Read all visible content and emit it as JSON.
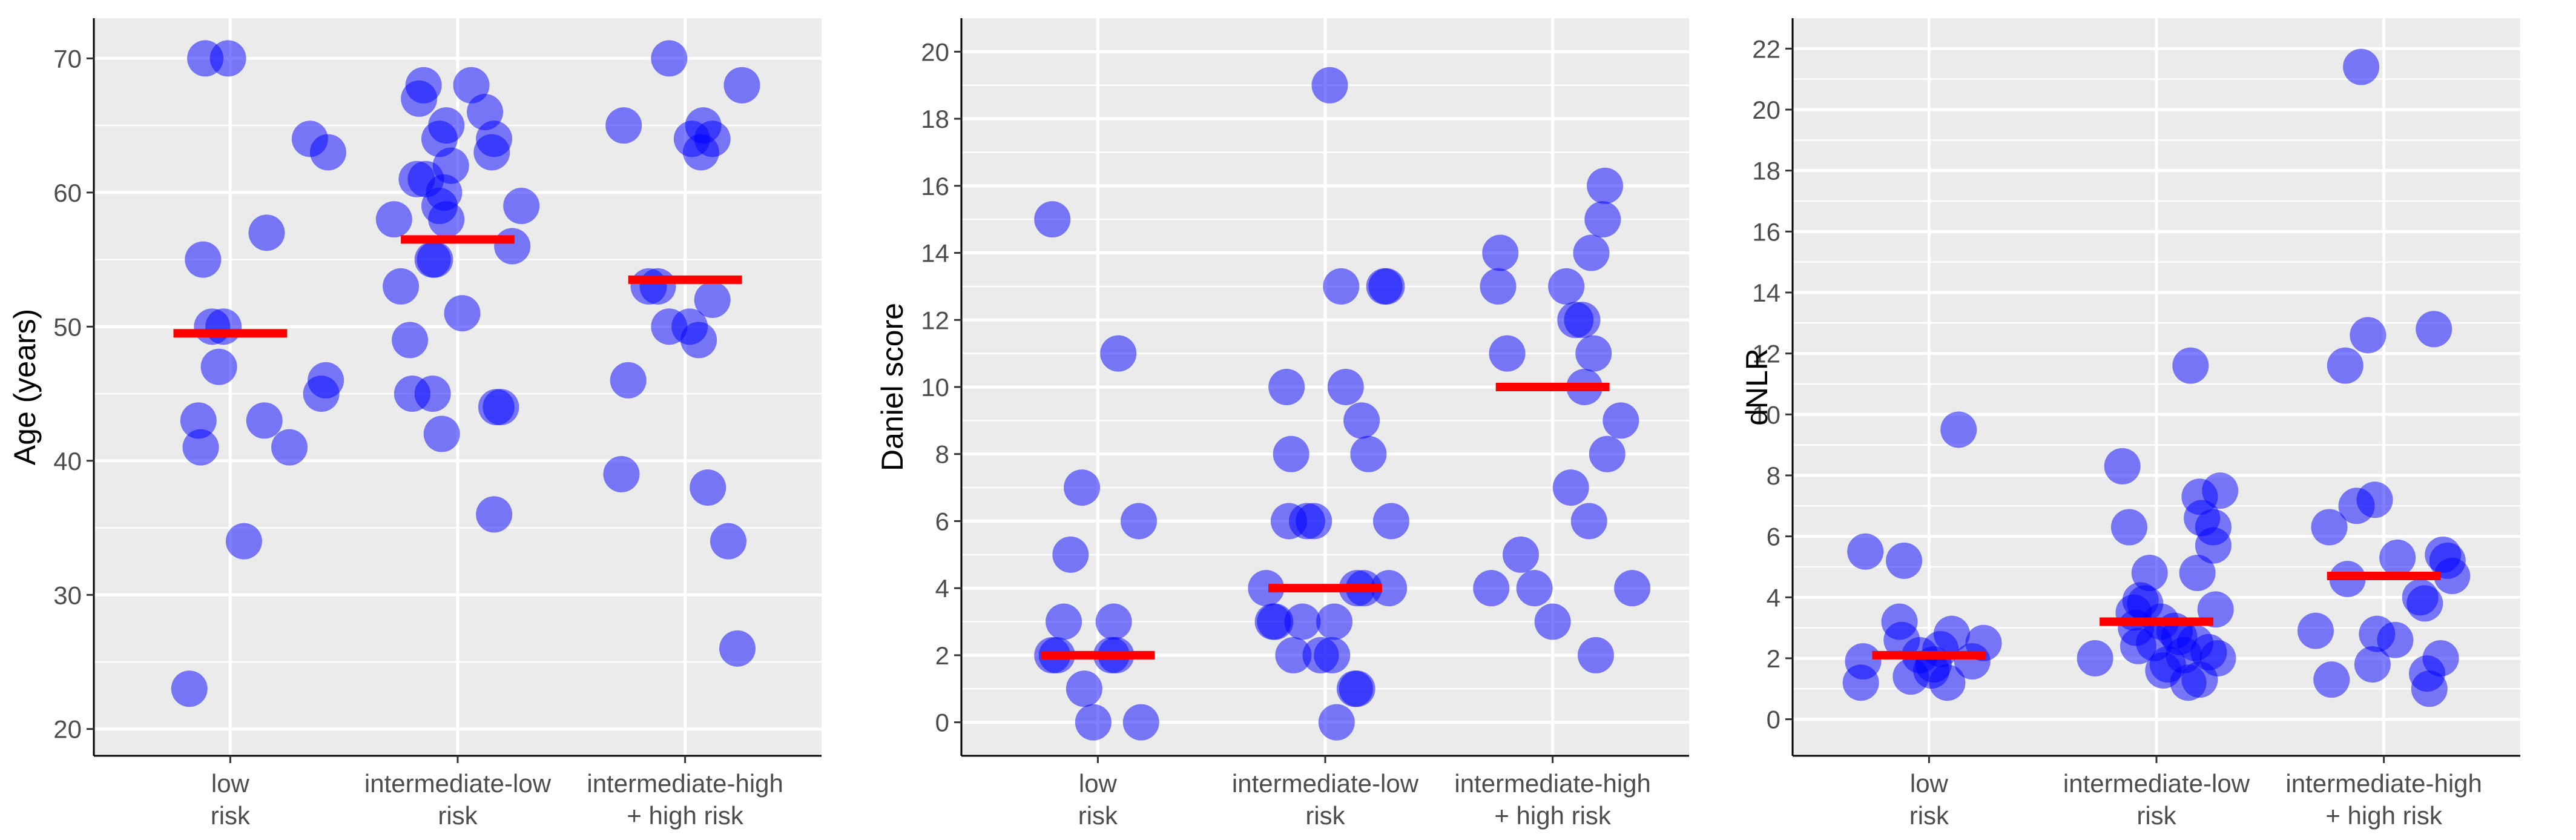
{
  "colors": {
    "point": "#0000ff",
    "median": "#ff0000",
    "panel_background": "#ebebeb",
    "grid": "#ffffff"
  },
  "chart_data": [
    {
      "type": "scatter",
      "subtype": "jitter-strip-with-median",
      "ylabel": "Age (years)",
      "xlabel": "",
      "categories": [
        [
          "low",
          "risk"
        ],
        [
          "intermediate-low",
          "risk"
        ],
        [
          "intermediate-high",
          "+ high risk"
        ]
      ],
      "ylim": [
        18,
        73
      ],
      "yticks": [
        20,
        30,
        40,
        50,
        60,
        70
      ],
      "grid": true,
      "points": [
        {
          "x": 0.82,
          "y": 23
        },
        {
          "x": 0.86,
          "y": 43
        },
        {
          "x": 0.87,
          "y": 41
        },
        {
          "x": 0.88,
          "y": 55
        },
        {
          "x": 0.89,
          "y": 70
        },
        {
          "x": 0.92,
          "y": 50
        },
        {
          "x": 0.95,
          "y": 47
        },
        {
          "x": 0.97,
          "y": 50
        },
        {
          "x": 0.99,
          "y": 70
        },
        {
          "x": 1.06,
          "y": 34
        },
        {
          "x": 1.15,
          "y": 43
        },
        {
          "x": 1.16,
          "y": 57
        },
        {
          "x": 1.26,
          "y": 41
        },
        {
          "x": 1.35,
          "y": 64
        },
        {
          "x": 1.4,
          "y": 45
        },
        {
          "x": 1.42,
          "y": 46
        },
        {
          "x": 1.43,
          "y": 63
        },
        {
          "x": 1.72,
          "y": 58
        },
        {
          "x": 1.75,
          "y": 53
        },
        {
          "x": 1.79,
          "y": 49
        },
        {
          "x": 1.8,
          "y": 45
        },
        {
          "x": 1.82,
          "y": 61
        },
        {
          "x": 1.83,
          "y": 67
        },
        {
          "x": 1.85,
          "y": 68
        },
        {
          "x": 1.86,
          "y": 61
        },
        {
          "x": 1.89,
          "y": 55
        },
        {
          "x": 1.89,
          "y": 45
        },
        {
          "x": 1.9,
          "y": 55
        },
        {
          "x": 1.92,
          "y": 64
        },
        {
          "x": 1.92,
          "y": 59
        },
        {
          "x": 1.93,
          "y": 42
        },
        {
          "x": 1.94,
          "y": 60
        },
        {
          "x": 1.95,
          "y": 65
        },
        {
          "x": 1.95,
          "y": 58
        },
        {
          "x": 1.97,
          "y": 62
        },
        {
          "x": 2.02,
          "y": 51
        },
        {
          "x": 2.06,
          "y": 68
        },
        {
          "x": 2.12,
          "y": 66
        },
        {
          "x": 2.15,
          "y": 63
        },
        {
          "x": 2.16,
          "y": 64
        },
        {
          "x": 2.16,
          "y": 36
        },
        {
          "x": 2.17,
          "y": 44
        },
        {
          "x": 2.19,
          "y": 44
        },
        {
          "x": 2.24,
          "y": 56
        },
        {
          "x": 2.28,
          "y": 59
        },
        {
          "x": 2.72,
          "y": 39
        },
        {
          "x": 2.73,
          "y": 65
        },
        {
          "x": 2.75,
          "y": 46
        },
        {
          "x": 2.84,
          "y": 53
        },
        {
          "x": 2.88,
          "y": 53
        },
        {
          "x": 2.93,
          "y": 50
        },
        {
          "x": 2.93,
          "y": 70
        },
        {
          "x": 3.02,
          "y": 50
        },
        {
          "x": 3.03,
          "y": 64
        },
        {
          "x": 3.06,
          "y": 49
        },
        {
          "x": 3.07,
          "y": 63
        },
        {
          "x": 3.08,
          "y": 65
        },
        {
          "x": 3.1,
          "y": 38
        },
        {
          "x": 3.12,
          "y": 64
        },
        {
          "x": 3.12,
          "y": 52
        },
        {
          "x": 3.19,
          "y": 34
        },
        {
          "x": 3.23,
          "y": 26
        },
        {
          "x": 3.25,
          "y": 68
        }
      ],
      "medians": [
        49.5,
        56.5,
        53.5
      ]
    },
    {
      "type": "scatter",
      "subtype": "jitter-strip-with-median",
      "ylabel": "Daniel score",
      "xlabel": "",
      "categories": [
        [
          "low",
          "risk"
        ],
        [
          "intermediate-low",
          "risk"
        ],
        [
          "intermediate-high",
          "+ high risk"
        ]
      ],
      "ylim": [
        -1,
        21
      ],
      "yticks": [
        0,
        2,
        4,
        6,
        8,
        10,
        12,
        14,
        16,
        18,
        20
      ],
      "grid": true,
      "points": [
        {
          "x": 0.8,
          "y": 15
        },
        {
          "x": 0.8,
          "y": 2
        },
        {
          "x": 0.82,
          "y": 2
        },
        {
          "x": 0.85,
          "y": 3
        },
        {
          "x": 0.88,
          "y": 5
        },
        {
          "x": 0.93,
          "y": 7
        },
        {
          "x": 0.94,
          "y": 1
        },
        {
          "x": 0.98,
          "y": 0
        },
        {
          "x": 1.06,
          "y": 2
        },
        {
          "x": 1.07,
          "y": 3
        },
        {
          "x": 1.08,
          "y": 2
        },
        {
          "x": 1.09,
          "y": 11
        },
        {
          "x": 1.18,
          "y": 6
        },
        {
          "x": 1.19,
          "y": 0
        },
        {
          "x": 1.74,
          "y": 4
        },
        {
          "x": 1.77,
          "y": 3
        },
        {
          "x": 1.78,
          "y": 3
        },
        {
          "x": 1.83,
          "y": 10
        },
        {
          "x": 1.84,
          "y": 6
        },
        {
          "x": 1.85,
          "y": 8
        },
        {
          "x": 1.86,
          "y": 2
        },
        {
          "x": 1.9,
          "y": 3
        },
        {
          "x": 1.92,
          "y": 6
        },
        {
          "x": 1.95,
          "y": 6
        },
        {
          "x": 1.98,
          "y": 2
        },
        {
          "x": 2.02,
          "y": 19
        },
        {
          "x": 2.03,
          "y": 2
        },
        {
          "x": 2.04,
          "y": 3
        },
        {
          "x": 2.05,
          "y": 0
        },
        {
          "x": 2.07,
          "y": 13
        },
        {
          "x": 2.09,
          "y": 10
        },
        {
          "x": 2.13,
          "y": 1
        },
        {
          "x": 2.14,
          "y": 4
        },
        {
          "x": 2.14,
          "y": 1
        },
        {
          "x": 2.16,
          "y": 9
        },
        {
          "x": 2.17,
          "y": 4
        },
        {
          "x": 2.19,
          "y": 8
        },
        {
          "x": 2.26,
          "y": 13
        },
        {
          "x": 2.27,
          "y": 13
        },
        {
          "x": 2.28,
          "y": 4
        },
        {
          "x": 2.29,
          "y": 6
        },
        {
          "x": 2.73,
          "y": 4
        },
        {
          "x": 2.76,
          "y": 13
        },
        {
          "x": 2.77,
          "y": 14
        },
        {
          "x": 2.8,
          "y": 11
        },
        {
          "x": 2.86,
          "y": 5
        },
        {
          "x": 2.92,
          "y": 4
        },
        {
          "x": 3.0,
          "y": 3
        },
        {
          "x": 3.06,
          "y": 13
        },
        {
          "x": 3.08,
          "y": 7
        },
        {
          "x": 3.1,
          "y": 12
        },
        {
          "x": 3.13,
          "y": 12
        },
        {
          "x": 3.14,
          "y": 10
        },
        {
          "x": 3.16,
          "y": 6
        },
        {
          "x": 3.17,
          "y": 14
        },
        {
          "x": 3.18,
          "y": 11
        },
        {
          "x": 3.19,
          "y": 2
        },
        {
          "x": 3.22,
          "y": 15
        },
        {
          "x": 3.23,
          "y": 16
        },
        {
          "x": 3.24,
          "y": 8
        },
        {
          "x": 3.3,
          "y": 9
        },
        {
          "x": 3.35,
          "y": 4
        }
      ],
      "medians": [
        2,
        4,
        10
      ]
    },
    {
      "type": "scatter",
      "subtype": "jitter-strip-with-median",
      "ylabel": "dNLR",
      "xlabel": "",
      "categories": [
        [
          "low",
          "risk"
        ],
        [
          "intermediate-low",
          "risk"
        ],
        [
          "intermediate-high",
          "+ high risk"
        ]
      ],
      "ylim": [
        -1.2,
        23
      ],
      "yticks": [
        0,
        2,
        4,
        6,
        8,
        10,
        12,
        14,
        16,
        18,
        20,
        22
      ],
      "grid": true,
      "points": [
        {
          "x": 0.7,
          "y": 1.2
        },
        {
          "x": 0.71,
          "y": 1.9
        },
        {
          "x": 0.72,
          "y": 5.5
        },
        {
          "x": 0.87,
          "y": 3.2
        },
        {
          "x": 0.88,
          "y": 2.6
        },
        {
          "x": 0.89,
          "y": 5.2
        },
        {
          "x": 0.92,
          "y": 1.4
        },
        {
          "x": 0.96,
          "y": 2.1
        },
        {
          "x": 1.01,
          "y": 1.6
        },
        {
          "x": 1.02,
          "y": 1.8
        },
        {
          "x": 1.05,
          "y": 2.3
        },
        {
          "x": 1.08,
          "y": 1.2
        },
        {
          "x": 1.1,
          "y": 2.8
        },
        {
          "x": 1.13,
          "y": 9.5
        },
        {
          "x": 1.19,
          "y": 1.9
        },
        {
          "x": 1.24,
          "y": 2.5
        },
        {
          "x": 1.73,
          "y": 2.0
        },
        {
          "x": 1.85,
          "y": 8.3
        },
        {
          "x": 1.88,
          "y": 6.3
        },
        {
          "x": 1.9,
          "y": 3.5
        },
        {
          "x": 1.91,
          "y": 3.0
        },
        {
          "x": 1.92,
          "y": 2.4
        },
        {
          "x": 1.93,
          "y": 3.9
        },
        {
          "x": 1.95,
          "y": 3.8
        },
        {
          "x": 1.97,
          "y": 4.8
        },
        {
          "x": 1.99,
          "y": 2.5
        },
        {
          "x": 2.02,
          "y": 3.2
        },
        {
          "x": 2.03,
          "y": 1.6
        },
        {
          "x": 2.05,
          "y": 1.8
        },
        {
          "x": 2.08,
          "y": 2.9
        },
        {
          "x": 2.1,
          "y": 2.7
        },
        {
          "x": 2.12,
          "y": 2.1
        },
        {
          "x": 2.14,
          "y": 1.2
        },
        {
          "x": 2.15,
          "y": 11.6
        },
        {
          "x": 2.17,
          "y": 2.5
        },
        {
          "x": 2.18,
          "y": 4.8
        },
        {
          "x": 2.19,
          "y": 7.3
        },
        {
          "x": 2.19,
          "y": 1.3
        },
        {
          "x": 2.2,
          "y": 6.6
        },
        {
          "x": 2.23,
          "y": 2.2
        },
        {
          "x": 2.25,
          "y": 6.3
        },
        {
          "x": 2.25,
          "y": 5.7
        },
        {
          "x": 2.26,
          "y": 3.6
        },
        {
          "x": 2.27,
          "y": 2.0
        },
        {
          "x": 2.28,
          "y": 7.5
        },
        {
          "x": 2.7,
          "y": 2.9
        },
        {
          "x": 2.76,
          "y": 6.3
        },
        {
          "x": 2.77,
          "y": 1.3
        },
        {
          "x": 2.83,
          "y": 11.6
        },
        {
          "x": 2.84,
          "y": 4.6
        },
        {
          "x": 2.88,
          "y": 7.0
        },
        {
          "x": 2.9,
          "y": 21.4
        },
        {
          "x": 2.93,
          "y": 12.6
        },
        {
          "x": 2.95,
          "y": 1.8
        },
        {
          "x": 2.96,
          "y": 7.2
        },
        {
          "x": 2.97,
          "y": 2.8
        },
        {
          "x": 3.05,
          "y": 2.6
        },
        {
          "x": 3.06,
          "y": 5.3
        },
        {
          "x": 3.16,
          "y": 4.0
        },
        {
          "x": 3.18,
          "y": 3.8
        },
        {
          "x": 3.19,
          "y": 1.5
        },
        {
          "x": 3.2,
          "y": 1.0
        },
        {
          "x": 3.22,
          "y": 12.8
        },
        {
          "x": 3.25,
          "y": 2.0
        },
        {
          "x": 3.26,
          "y": 5.4
        },
        {
          "x": 3.28,
          "y": 5.2
        },
        {
          "x": 3.3,
          "y": 4.7
        }
      ],
      "medians": [
        2.1,
        3.2,
        4.7
      ]
    }
  ]
}
